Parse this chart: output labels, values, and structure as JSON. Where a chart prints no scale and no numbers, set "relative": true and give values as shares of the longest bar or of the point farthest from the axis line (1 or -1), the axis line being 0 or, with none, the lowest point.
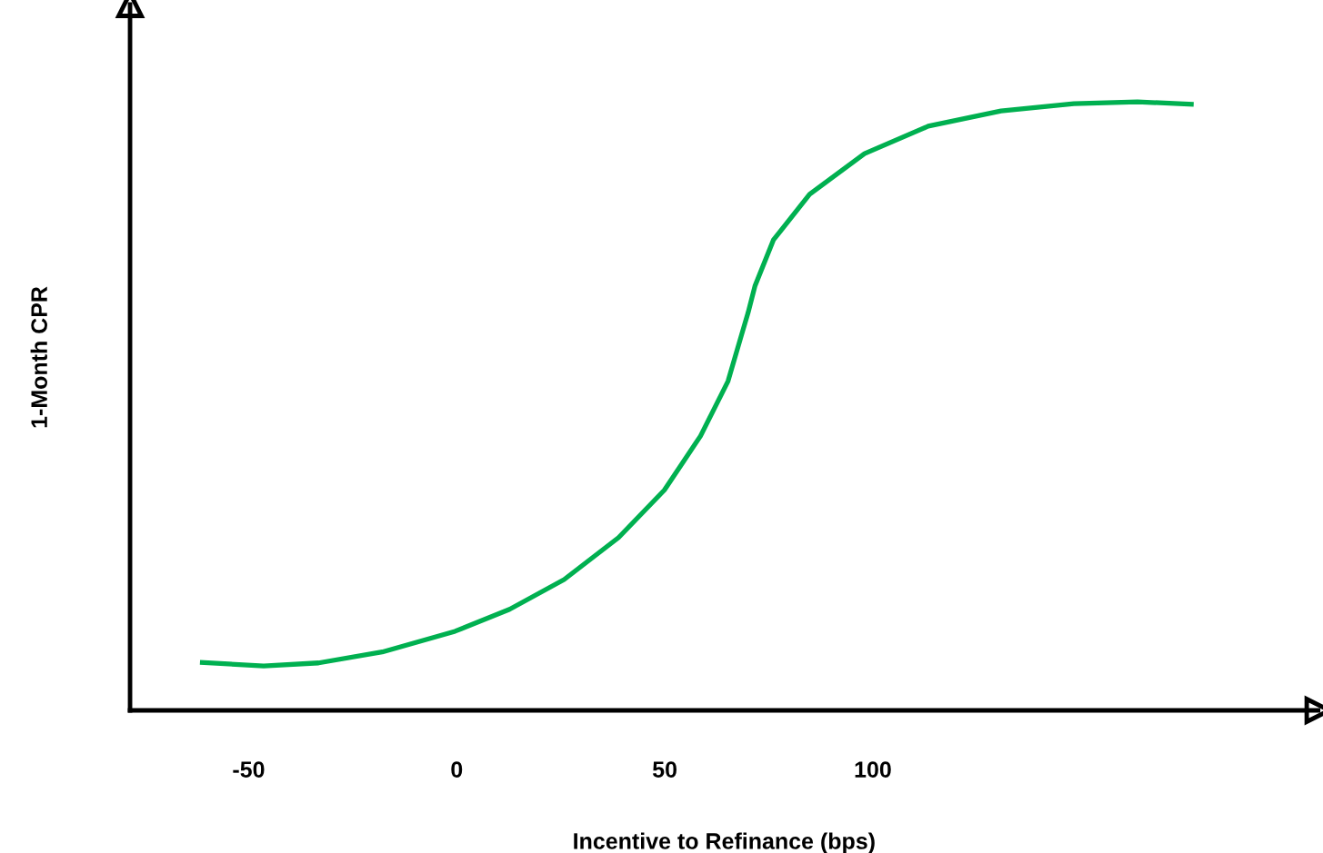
{
  "chart_data": {
    "type": "line",
    "xlabel": "Incentive to Refinance (bps)",
    "ylabel": "1-Month CPR",
    "relative": true,
    "xlim": [
      -78.5,
      207
    ],
    "xticks": [
      -50,
      0,
      50,
      100
    ],
    "grid": false,
    "legend": false,
    "marker": "none",
    "line_style": "solid",
    "tick_labels": "x",
    "series": [
      {
        "color": "#00b050",
        "x": [
          -61.7,
          -46.4,
          -33.2,
          -17.9,
          -0.4,
          12.7,
          25.8,
          38.9,
          49.9,
          58.6,
          65.2,
          68.4,
          70.0,
          71.7,
          76.1,
          84.8,
          98.0,
          113.3,
          130.8,
          148.3,
          163.6,
          177.1
        ],
        "values": [
          0.079,
          0.073,
          0.078,
          0.096,
          0.13,
          0.166,
          0.215,
          0.284,
          0.362,
          0.451,
          0.541,
          0.616,
          0.653,
          0.698,
          0.773,
          0.848,
          0.915,
          0.96,
          0.985,
          0.997,
          1.0,
          0.996
        ]
      }
    ]
  }
}
